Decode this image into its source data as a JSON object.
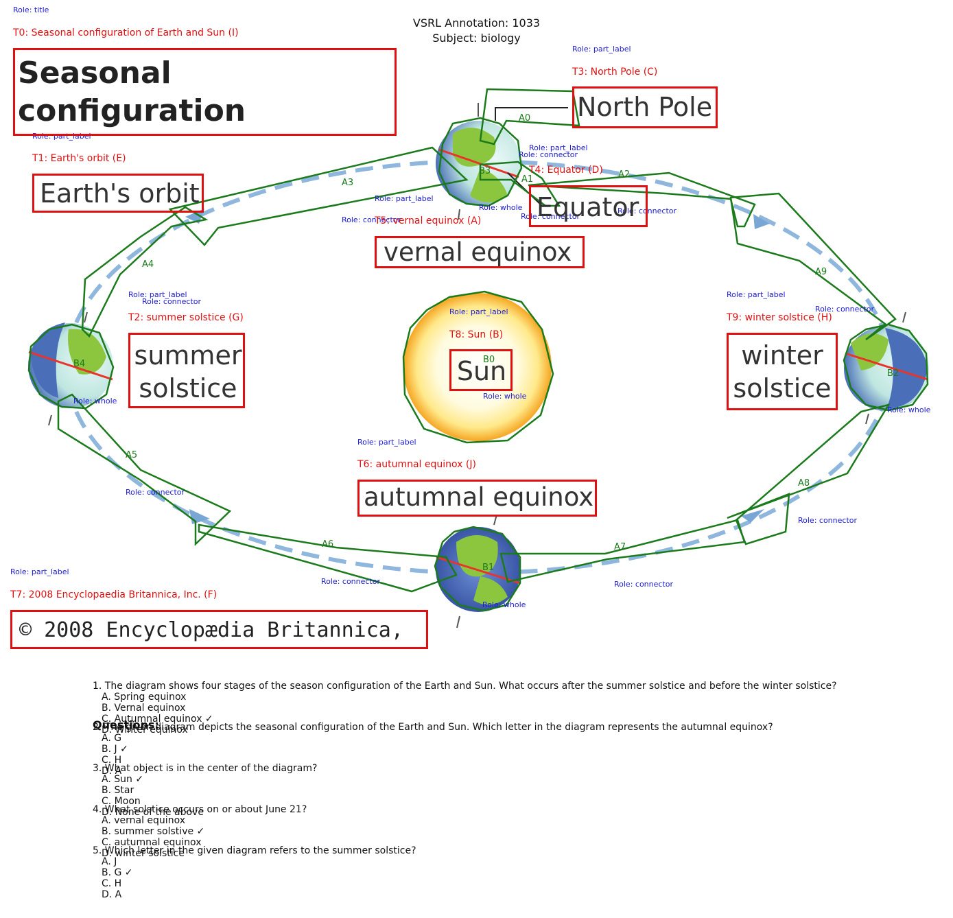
{
  "header": {
    "annotation": "VSRL Annotation: 1033",
    "subject": "Subject: biology"
  },
  "roles": {
    "title": "Role: title",
    "part_label": "Role: part_label",
    "connector": "Role: connector",
    "whole": "Role: whole"
  },
  "text_labels": {
    "t0": "T0: Seasonal configuration of Earth and Sun (I)",
    "t1": "T1: Earth's orbit (E)",
    "t2": "T2: summer solstice (G)",
    "t3": "T3: North Pole (C)",
    "t4": "T4: Equator (D)",
    "t5": "T5: vernal equinox (A)",
    "t6": "T6: autumnal equinox (J)",
    "t7": "T7: 2008 Encyclopaedia Britannica, Inc. (F)",
    "t8": "T8: Sun (B)",
    "t9": "T9: winter solstice (H)"
  },
  "box_text": {
    "title_line1": "Seasonal configuration",
    "title_line2": "of Earth and Sun",
    "orbit": "Earth's orbit",
    "north_pole": "North Pole",
    "equator": "Equator",
    "vernal": "vernal equinox",
    "summer_line1": "summer",
    "summer_line2": "solstice",
    "sun": "Sun",
    "winter_line1": "winter",
    "winter_line2": "solstice",
    "autumnal": "autumnal equinox",
    "copyright": "© 2008 Encyclopædia Britannica, Inc."
  },
  "arrow_labels": [
    "A0",
    "A1",
    "A2",
    "A3",
    "A4",
    "A5",
    "A6",
    "A7",
    "A8",
    "A9"
  ],
  "blob_labels": [
    "B0",
    "B1",
    "B2",
    "B3",
    "B4"
  ],
  "questions": {
    "heading": "Questions:",
    "items": [
      {
        "text": "1. The diagram shows four stages of the season configuration of the Earth and Sun. What occurs after the summer solstice and before the winter solstice?",
        "options": [
          "A. Spring equinox",
          "B. Vernal equinox",
          "C. Autumnal equinox ✓",
          "D. Winter equinox"
        ]
      },
      {
        "text": "2. The given diagram depicts the seasonal configuration of the Earth and Sun. Which letter in the diagram represents the autumnal equinox?",
        "options": [
          "A. G",
          "B. J ✓",
          "C. H",
          "D. A"
        ]
      },
      {
        "text": "3. What object is in the center of the diagram?",
        "options": [
          "A. Sun ✓",
          "B. Star",
          "C. Moon",
          "D. None of the above"
        ]
      },
      {
        "text": "4. What solstice occurs on or about June 21?",
        "options": [
          "A. vernal equinox",
          "B. summer solstive ✓",
          "C. autumnal equinox",
          "D. winter solstice"
        ]
      },
      {
        "text": "5. Which letter in the given diagram refers to the summer solstice?",
        "options": [
          "A. J",
          "B. G ✓",
          "C. H",
          "D. A"
        ]
      }
    ]
  },
  "colors": {
    "annotation_red": "#e01010",
    "role_blue": "#1a1ad6",
    "outline_green": "#1b7a1b",
    "orbit_blue": "#8fb6dc",
    "sun_yellow": "#fff3a8"
  }
}
